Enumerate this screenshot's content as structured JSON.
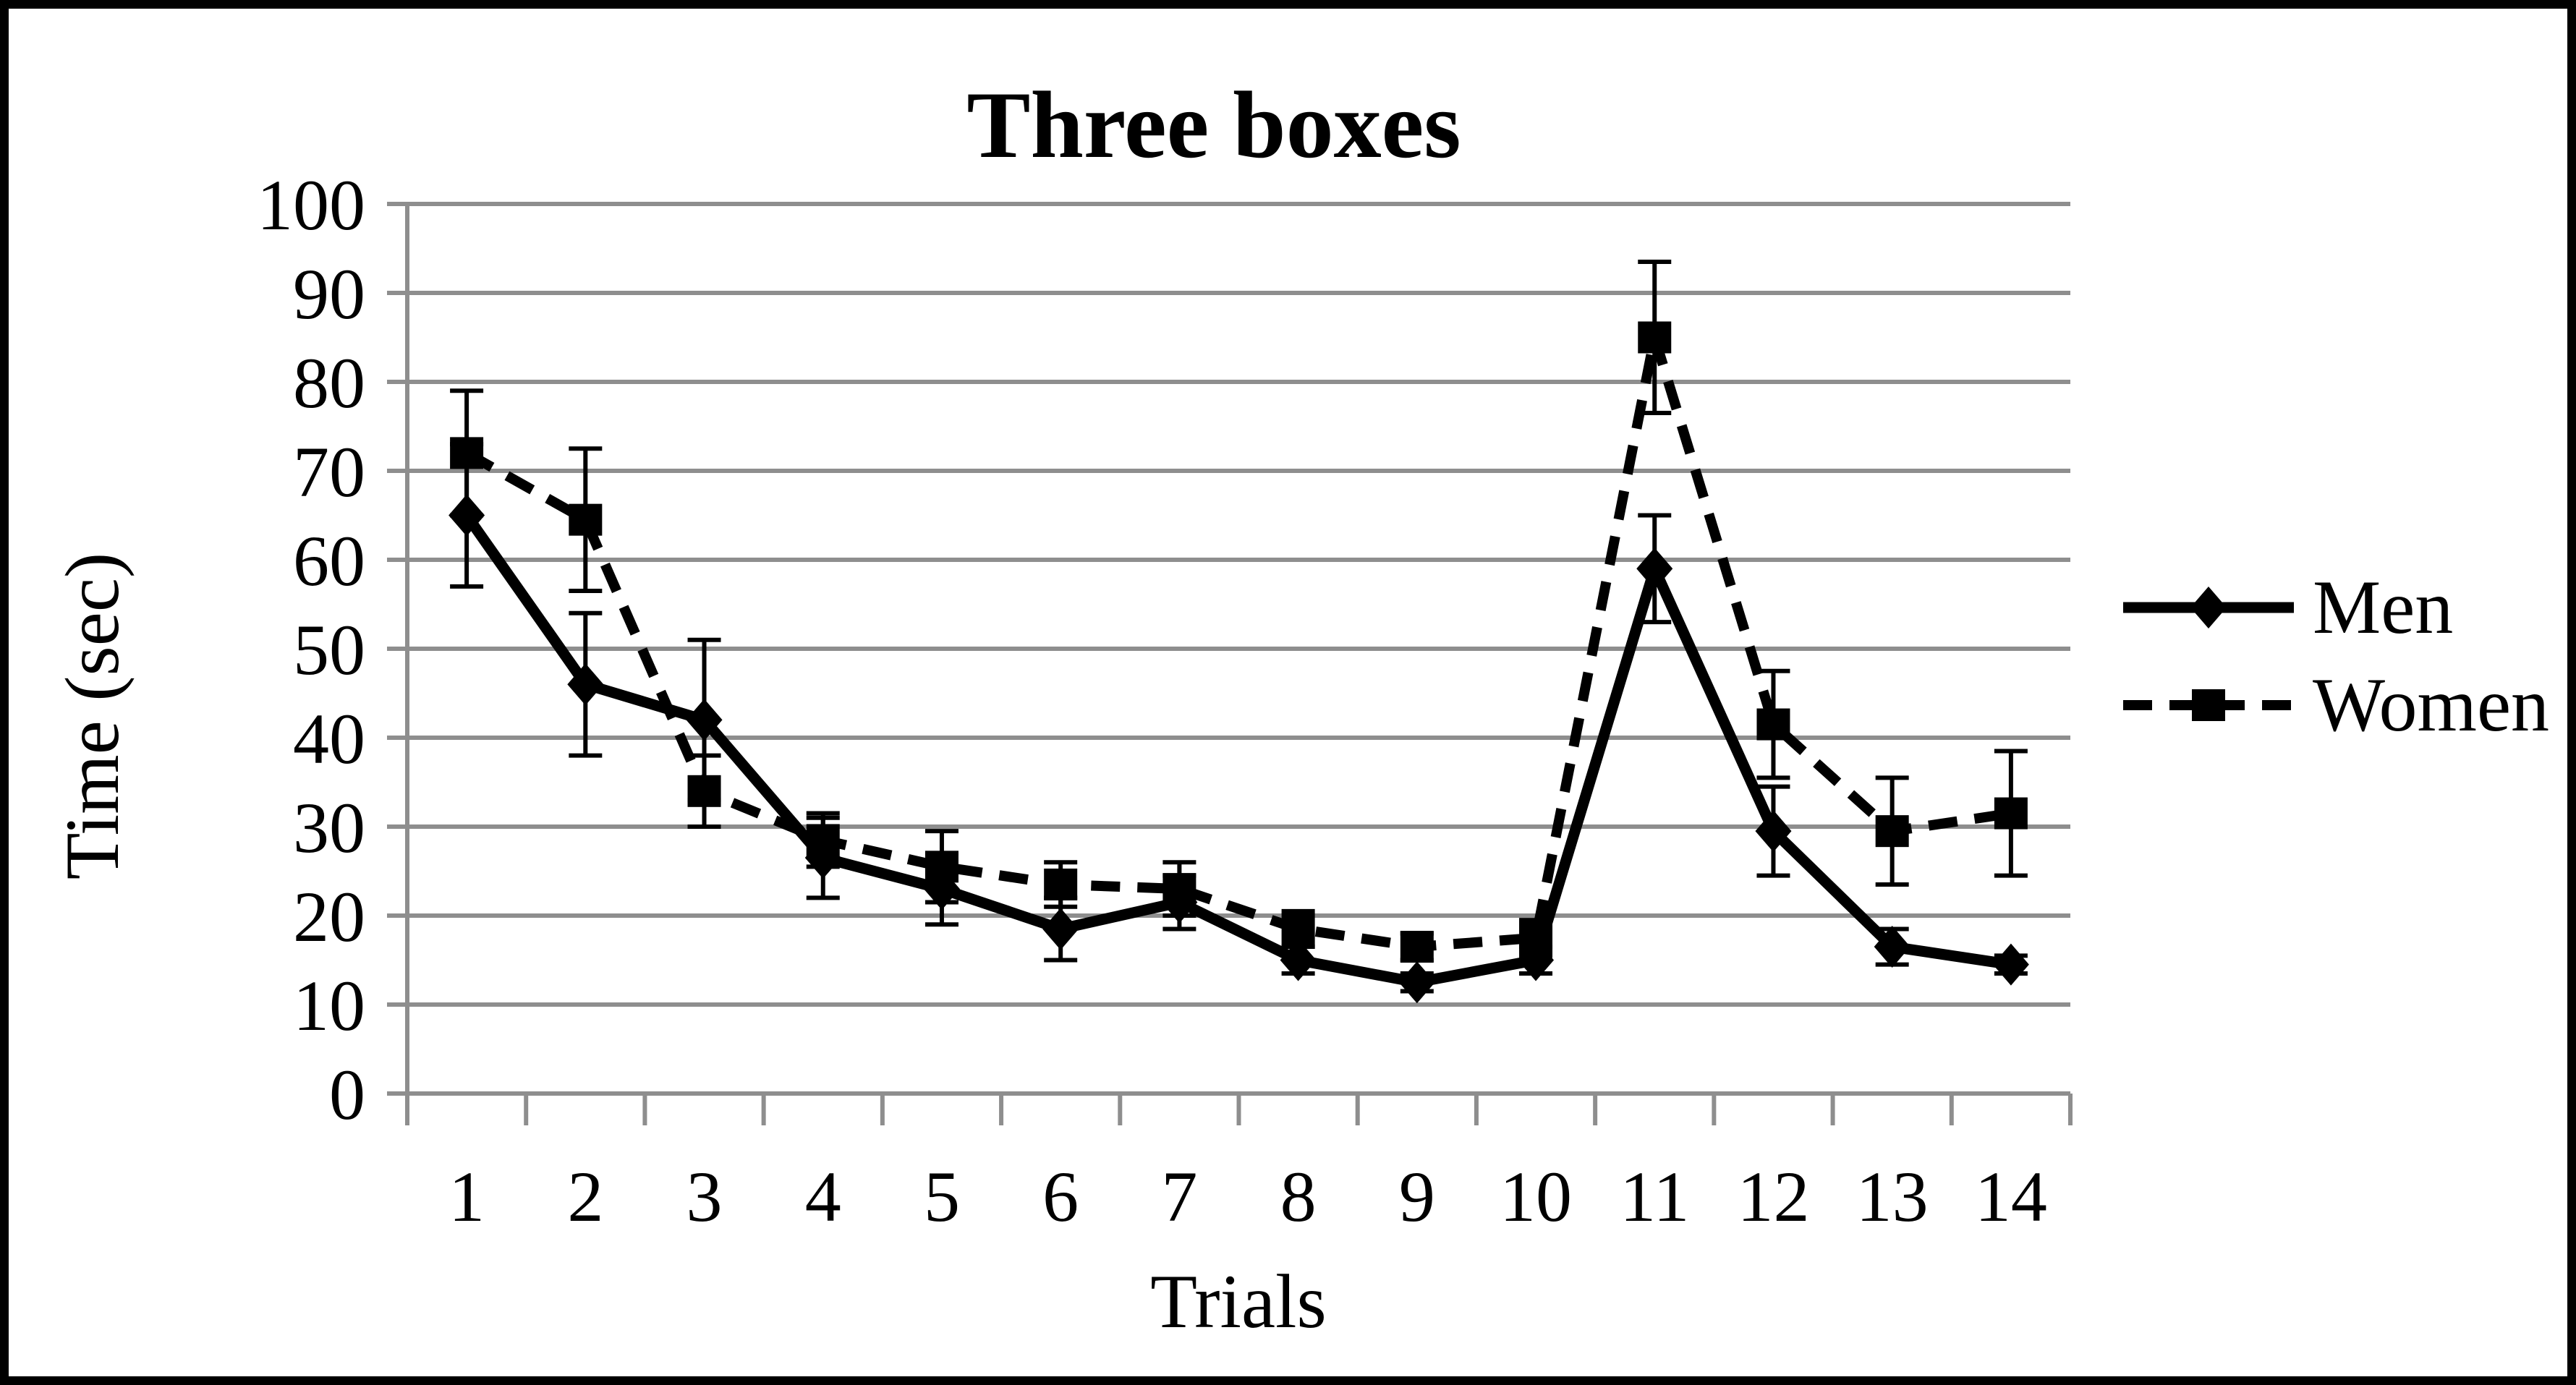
{
  "figure": {
    "background": "#ffffff",
    "border_color": "#000000",
    "series_color": "#000000",
    "gridline_color": "#8E8E8E"
  },
  "chart_data": {
    "type": "line",
    "title": "Three boxes",
    "xlabel": "Trials",
    "ylabel": "Time (sec)",
    "categories": [
      "1",
      "2",
      "3",
      "4",
      "5",
      "6",
      "7",
      "8",
      "9",
      "10",
      "11",
      "12",
      "13",
      "14"
    ],
    "ylim": [
      0,
      100
    ],
    "ytick_step": 10,
    "ytick_labels": [
      "0",
      "10",
      "20",
      "30",
      "40",
      "50",
      "60",
      "70",
      "80",
      "90",
      "100"
    ],
    "grid": "horizontal",
    "legend_position": "right",
    "error_bars": true,
    "series": [
      {
        "name": "Men",
        "marker": "diamond",
        "line_style": "solid",
        "color": "#000000",
        "values": [
          65,
          46,
          42,
          26.5,
          23,
          18.5,
          21.5,
          15,
          12.5,
          15,
          59,
          29.5,
          16.5,
          14.5
        ],
        "errors": [
          8,
          8,
          9,
          4.5,
          4,
          3.5,
          3,
          1.5,
          1,
          1.5,
          6,
          5,
          2,
          1
        ]
      },
      {
        "name": "Women",
        "marker": "square",
        "line_style": "dashed",
        "color": "#000000",
        "values": [
          72,
          64.5,
          34,
          28.5,
          25.5,
          23.5,
          23,
          18.5,
          16.5,
          17.5,
          85,
          41.5,
          29.5,
          31.5
        ],
        "errors": [
          7,
          8,
          4,
          3,
          4,
          2.5,
          3,
          2,
          1.5,
          2,
          8.5,
          6,
          6,
          7
        ]
      }
    ]
  }
}
